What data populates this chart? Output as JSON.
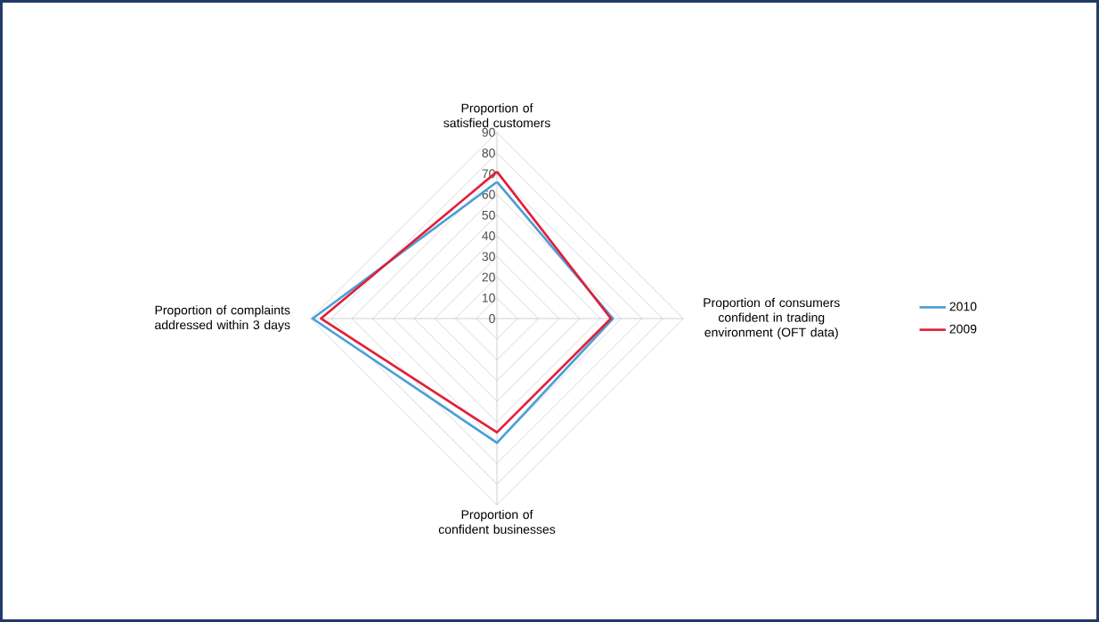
{
  "chart_data": {
    "type": "radar",
    "categories": [
      "Proportion of satisfied customers",
      "Proportion of consumers confident in trading environment (OFT data)",
      "Proportion of confident businesses",
      "Proportion of complaints addressed within 3 days"
    ],
    "series": [
      {
        "name": "2010",
        "color": "#4a9fd8",
        "values": [
          66,
          56,
          60,
          89
        ]
      },
      {
        "name": "2009",
        "color": "#e0203a",
        "values": [
          71,
          55,
          55,
          85
        ]
      }
    ],
    "ylim": [
      0,
      90
    ],
    "yticks": [
      0,
      10,
      20,
      30,
      40,
      50,
      60,
      70,
      80,
      90
    ],
    "grid": true,
    "legend": "right"
  }
}
